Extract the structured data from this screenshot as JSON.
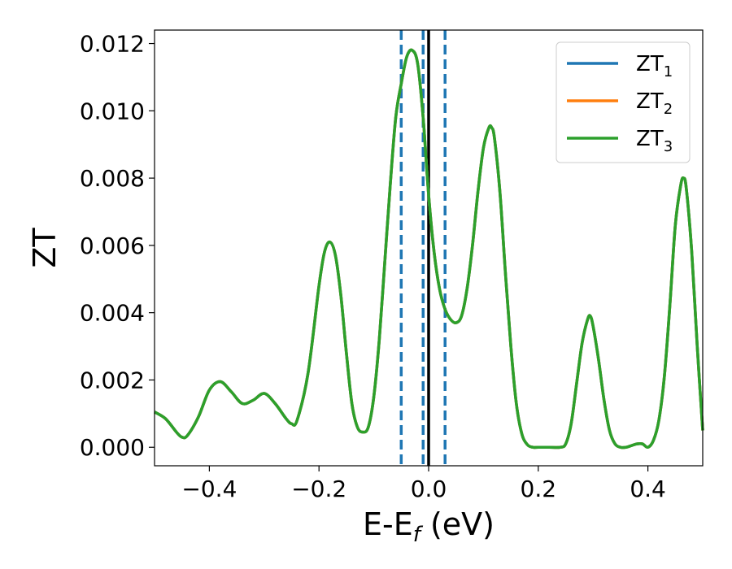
{
  "chart_data": {
    "type": "line",
    "title": "",
    "xlabel": "E-E",
    "xlabel_sub": "f",
    "xlabel_suffix": " (eV)",
    "ylabel": "ZT",
    "xlim": [
      -0.5,
      0.5
    ],
    "ylim": [
      -0.00055,
      0.0124
    ],
    "xticks": [
      -0.4,
      -0.2,
      0.0,
      0.2,
      0.4
    ],
    "xtick_labels": [
      "−0.4",
      "−0.2",
      "0.0",
      "0.2",
      "0.4"
    ],
    "yticks": [
      0.0,
      0.002,
      0.004,
      0.006,
      0.008,
      0.01,
      0.012
    ],
    "ytick_labels": [
      "0.000",
      "0.002",
      "0.004",
      "0.006",
      "0.008",
      "0.010",
      "0.012"
    ],
    "grid": false,
    "legend_position": "top-right",
    "vlines": [
      {
        "x": -0.05,
        "style": "dashed",
        "color": "#1f77b4"
      },
      {
        "x": -0.01,
        "style": "dashed",
        "color": "#1f77b4"
      },
      {
        "x": 0.0,
        "style": "solid",
        "color": "#000000"
      },
      {
        "x": 0.03,
        "style": "dashed",
        "color": "#1f77b4"
      }
    ],
    "series": [
      {
        "name": "ZT",
        "sub": "1",
        "color": "#1f77b4"
      },
      {
        "name": "ZT",
        "sub": "2",
        "color": "#ff7f0e"
      },
      {
        "name": "ZT",
        "sub": "3",
        "color": "#2ca02c"
      }
    ],
    "x": [
      -0.5,
      -0.48,
      -0.46,
      -0.45,
      -0.44,
      -0.42,
      -0.4,
      -0.38,
      -0.36,
      -0.34,
      -0.32,
      -0.3,
      -0.28,
      -0.26,
      -0.25,
      -0.24,
      -0.22,
      -0.2,
      -0.19,
      -0.18,
      -0.17,
      -0.16,
      -0.15,
      -0.14,
      -0.13,
      -0.12,
      -0.11,
      -0.1,
      -0.09,
      -0.08,
      -0.07,
      -0.06,
      -0.05,
      -0.04,
      -0.03,
      -0.02,
      -0.01,
      0.0,
      0.01,
      0.02,
      0.03,
      0.04,
      0.05,
      0.06,
      0.07,
      0.08,
      0.09,
      0.1,
      0.11,
      0.115,
      0.12,
      0.13,
      0.14,
      0.15,
      0.16,
      0.17,
      0.18,
      0.19,
      0.2,
      0.22,
      0.24,
      0.25,
      0.26,
      0.27,
      0.28,
      0.29,
      0.295,
      0.3,
      0.31,
      0.32,
      0.33,
      0.34,
      0.35,
      0.36,
      0.37,
      0.38,
      0.39,
      0.4,
      0.41,
      0.42,
      0.43,
      0.44,
      0.45,
      0.46,
      0.465,
      0.47,
      0.48,
      0.49,
      0.5
    ],
    "y": [
      0.00105,
      0.00085,
      0.00045,
      0.0003,
      0.00035,
      0.0009,
      0.0017,
      0.00195,
      0.00165,
      0.0013,
      0.0014,
      0.0016,
      0.0013,
      0.00085,
      0.0007,
      0.0008,
      0.0022,
      0.0048,
      0.0058,
      0.0061,
      0.0057,
      0.0045,
      0.0028,
      0.0013,
      0.0006,
      0.00045,
      0.0006,
      0.0015,
      0.0032,
      0.0055,
      0.0078,
      0.0098,
      0.0108,
      0.0116,
      0.0118,
      0.0114,
      0.0098,
      0.0075,
      0.0058,
      0.0047,
      0.0041,
      0.0038,
      0.0037,
      0.0039,
      0.0047,
      0.006,
      0.0076,
      0.0089,
      0.0095,
      0.0095,
      0.0092,
      0.0076,
      0.0052,
      0.003,
      0.0013,
      0.0004,
      8e-05,
      0.0,
      0.0,
      0.0,
      0.0,
      0.0001,
      0.0007,
      0.0019,
      0.0031,
      0.0038,
      0.0039,
      0.0036,
      0.0026,
      0.0014,
      0.0005,
      0.0001,
      0.0,
      0.0,
      5e-05,
      0.0001,
      0.0001,
      0.0,
      0.0002,
      0.0008,
      0.0021,
      0.0042,
      0.0066,
      0.0078,
      0.008,
      0.0077,
      0.0058,
      0.003,
      0.0005
    ]
  }
}
